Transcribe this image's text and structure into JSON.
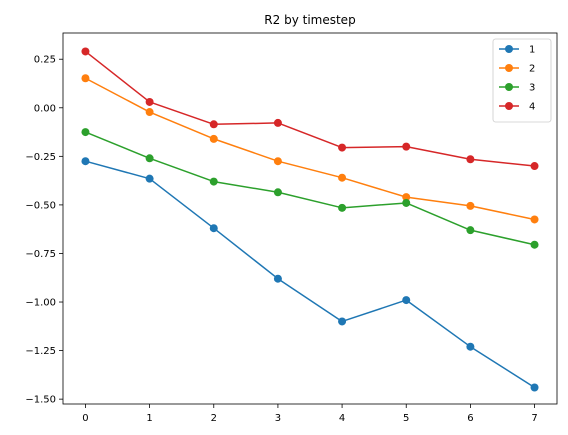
{
  "chart_data": {
    "type": "line",
    "title": "R2 by timestep",
    "xlabel": "",
    "ylabel": "",
    "x": [
      0,
      1,
      2,
      3,
      4,
      5,
      6,
      7
    ],
    "xlim": [
      -0.35,
      7.35
    ],
    "ylim": [
      -1.525,
      0.385
    ],
    "yticks": [
      0.25,
      0.0,
      -0.25,
      -0.5,
      -0.75,
      -1.0,
      -1.25,
      -1.5
    ],
    "ytick_labels": [
      "0.25",
      "0.00",
      "−0.25",
      "−0.50",
      "−0.75",
      "−1.00",
      "−1.25",
      "−1.50"
    ],
    "xticks": [
      0,
      1,
      2,
      3,
      4,
      5,
      6,
      7
    ],
    "xtick_labels": [
      "0",
      "1",
      "2",
      "3",
      "4",
      "5",
      "6",
      "7"
    ],
    "grid": false,
    "legend_position": "top-right",
    "series": [
      {
        "name": "1",
        "color": "#1f77b4",
        "values": [
          -0.275,
          -0.365,
          -0.62,
          -0.88,
          -1.1,
          -0.99,
          -1.23,
          -1.44
        ]
      },
      {
        "name": "2",
        "color": "#ff7f0e",
        "values": [
          0.152,
          -0.022,
          -0.16,
          -0.275,
          -0.36,
          -0.46,
          -0.505,
          -0.575
        ]
      },
      {
        "name": "3",
        "color": "#2ca02c",
        "values": [
          -0.125,
          -0.26,
          -0.38,
          -0.435,
          -0.515,
          -0.49,
          -0.63,
          -0.705
        ]
      },
      {
        "name": "4",
        "color": "#d62728",
        "values": [
          0.29,
          0.03,
          -0.085,
          -0.078,
          -0.205,
          -0.2,
          -0.265,
          -0.3
        ]
      }
    ]
  }
}
